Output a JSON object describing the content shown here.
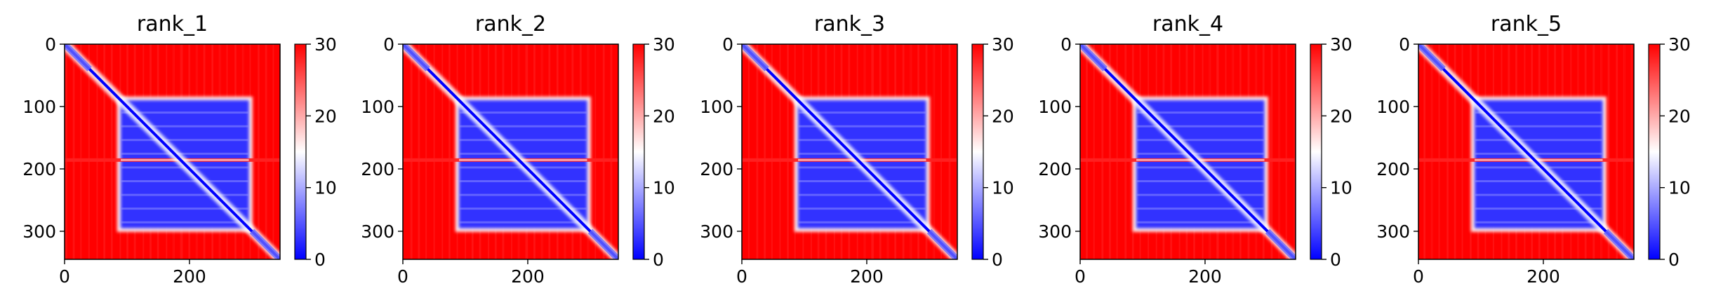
{
  "colormap": {
    "low": "#0000ff",
    "mid": "#ffffff",
    "high": "#ff0000"
  },
  "chart_data": [
    {
      "type": "heatmap",
      "title": "rank_1",
      "xlim": [
        0,
        345
      ],
      "ylim": [
        345,
        0
      ],
      "x_ticks": [
        0,
        200
      ],
      "y_ticks": [
        0,
        100,
        200,
        300
      ],
      "colorbar": {
        "range": [
          0,
          30
        ],
        "ticks": [
          0,
          10,
          20,
          30
        ]
      },
      "description": "pairwise distance matrix; low values along diagonal and in central block approx 90-295; high elsewhere",
      "block": [
        90,
        295
      ],
      "size": 345,
      "stripe": 185
    },
    {
      "type": "heatmap",
      "title": "rank_2",
      "xlim": [
        0,
        345
      ],
      "ylim": [
        345,
        0
      ],
      "x_ticks": [
        0,
        200
      ],
      "y_ticks": [
        0,
        100,
        200,
        300
      ],
      "colorbar": {
        "range": [
          0,
          30
        ],
        "ticks": [
          0,
          10,
          20,
          30
        ]
      },
      "description": "pairwise distance matrix; low values along diagonal and in central block approx 90-295; high elsewhere",
      "block": [
        90,
        295
      ],
      "size": 345,
      "stripe": 185
    },
    {
      "type": "heatmap",
      "title": "rank_3",
      "xlim": [
        0,
        345
      ],
      "ylim": [
        345,
        0
      ],
      "x_ticks": [
        0,
        200
      ],
      "y_ticks": [
        0,
        100,
        200,
        300
      ],
      "colorbar": {
        "range": [
          0,
          30
        ],
        "ticks": [
          0,
          10,
          20,
          30
        ]
      },
      "description": "pairwise distance matrix; low values along diagonal and in central block approx 90-295; high elsewhere",
      "block": [
        90,
        295
      ],
      "size": 345,
      "stripe": 185
    },
    {
      "type": "heatmap",
      "title": "rank_4",
      "xlim": [
        0,
        345
      ],
      "ylim": [
        345,
        0
      ],
      "x_ticks": [
        0,
        200
      ],
      "y_ticks": [
        0,
        100,
        200,
        300
      ],
      "colorbar": {
        "range": [
          0,
          30
        ],
        "ticks": [
          0,
          10,
          20,
          30
        ]
      },
      "description": "pairwise distance matrix; low values along diagonal and in central block approx 90-295; high elsewhere",
      "block": [
        90,
        295
      ],
      "size": 345,
      "stripe": 185
    },
    {
      "type": "heatmap",
      "title": "rank_5",
      "xlim": [
        0,
        345
      ],
      "ylim": [
        345,
        0
      ],
      "x_ticks": [
        0,
        200
      ],
      "y_ticks": [
        0,
        100,
        200,
        300
      ],
      "colorbar": {
        "range": [
          0,
          30
        ],
        "ticks": [
          0,
          10,
          20,
          30
        ]
      },
      "description": "pairwise distance matrix; low values along diagonal and in central block approx 90-295; high elsewhere",
      "block": [
        90,
        295
      ],
      "size": 345,
      "stripe": 185
    }
  ]
}
